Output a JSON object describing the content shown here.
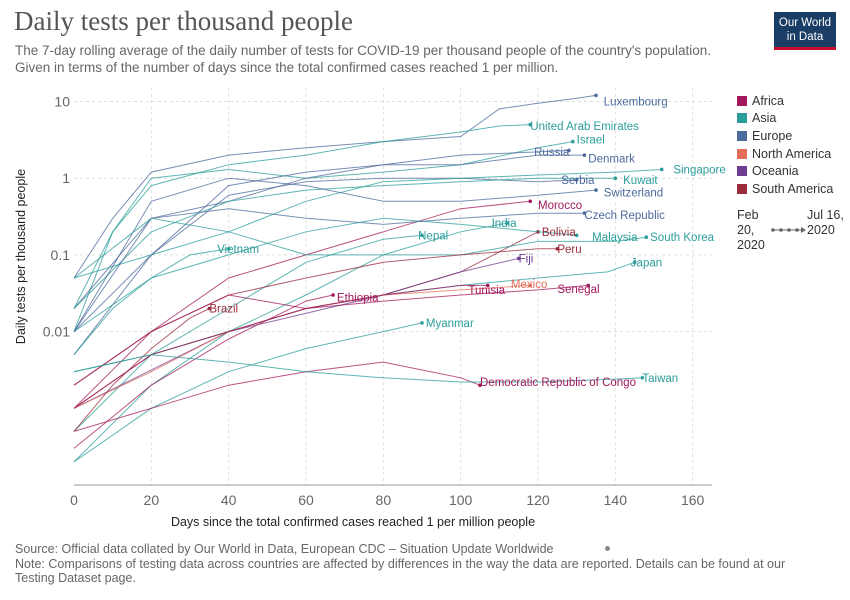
{
  "header": {
    "title": "Daily tests per thousand people",
    "subtitle": "The 7-day rolling average of the daily number of tests for COVID-19 per thousand people of the country's population. Given in terms of the number of days since the total confirmed cases reached 1 per million.",
    "logo_line1": "Our World",
    "logo_line2": "in Data"
  },
  "legend": {
    "items": [
      {
        "label": "Africa",
        "color": "#a2185b"
      },
      {
        "label": "Asia",
        "color": "#2a9d9a"
      },
      {
        "label": "Europe",
        "color": "#4c6a9c"
      },
      {
        "label": "North America",
        "color": "#e56e5a"
      },
      {
        "label": "Oceania",
        "color": "#6d3e91"
      },
      {
        "label": "South America",
        "color": "#9a2b3c"
      }
    ]
  },
  "timeline": {
    "start": "Feb 20, 2020",
    "end": "Jul 16, 2020"
  },
  "footer": {
    "source": "Source: Official data collated by Our World in Data, European CDC – Situation Update Worldwide",
    "note": "Note: Comparisons of testing data across countries are affected by differences in the way the data are reported. Details can be found at our Testing Dataset page."
  },
  "chart_data": {
    "type": "line",
    "title": "Daily tests per thousand people",
    "xlabel": "Days since the total confirmed cases reached 1 per million people",
    "ylabel": "Daily tests per thousand people",
    "xlim": [
      0,
      165
    ],
    "ylim": [
      0.0001,
      15
    ],
    "y_scale": "log",
    "x_ticks": [
      0,
      20,
      40,
      60,
      80,
      100,
      120,
      140,
      160
    ],
    "y_ticks": [
      {
        "value": 10,
        "label": "10"
      },
      {
        "value": 1,
        "label": "1"
      },
      {
        "value": 0.1,
        "label": "0.1"
      },
      {
        "value": 0.01,
        "label": "0.01"
      }
    ],
    "grid": true,
    "legend_position": "right",
    "series": [
      {
        "name": "Luxembourg",
        "region": "Europe",
        "x": [
          0,
          10,
          20,
          40,
          60,
          80,
          100,
          110,
          120,
          130,
          135
        ],
        "y": [
          0.05,
          0.3,
          1.2,
          2.0,
          2.5,
          3.0,
          3.5,
          8.0,
          9.5,
          11.0,
          12.0
        ],
        "label_x": 137,
        "label_y": 10.0
      },
      {
        "name": "United Arab Emirates",
        "region": "Asia",
        "x": [
          0,
          10,
          20,
          40,
          60,
          80,
          100,
          110,
          118
        ],
        "y": [
          0.02,
          0.2,
          0.8,
          1.5,
          2.0,
          3.0,
          4.0,
          4.8,
          5.0
        ],
        "label_x": 118,
        "label_y": 4.8
      },
      {
        "name": "Israel",
        "region": "Asia",
        "x": [
          0,
          10,
          20,
          40,
          60,
          80,
          100,
          120,
          129
        ],
        "y": [
          0.01,
          0.2,
          1.0,
          1.3,
          1.0,
          1.2,
          1.5,
          2.5,
          3.0
        ],
        "label_x": 130,
        "label_y": 3.2
      },
      {
        "name": "Russia",
        "region": "Europe",
        "x": [
          0,
          20,
          40,
          60,
          80,
          100,
          120,
          128
        ],
        "y": [
          0.005,
          0.1,
          0.8,
          1.2,
          1.5,
          2.0,
          2.2,
          2.3
        ],
        "label_x": 119,
        "label_y": 2.2
      },
      {
        "name": "Denmark",
        "region": "Europe",
        "x": [
          0,
          20,
          40,
          60,
          80,
          100,
          120,
          132
        ],
        "y": [
          0.02,
          0.3,
          0.5,
          1.0,
          1.5,
          1.5,
          2.0,
          2.0
        ],
        "label_x": 133,
        "label_y": 1.8
      },
      {
        "name": "Serbia",
        "region": "Europe",
        "x": [
          0,
          20,
          40,
          60,
          80,
          100,
          120,
          130
        ],
        "y": [
          0.01,
          0.1,
          0.6,
          0.9,
          1.0,
          1.0,
          0.9,
          0.95
        ],
        "label_x": 126,
        "label_y": 0.95
      },
      {
        "name": "Kuwait",
        "region": "Asia",
        "x": [
          0,
          20,
          40,
          60,
          80,
          100,
          120,
          140
        ],
        "y": [
          0.02,
          0.2,
          0.5,
          0.7,
          0.8,
          0.9,
          1.0,
          1.0
        ],
        "label_x": 142,
        "label_y": 0.95
      },
      {
        "name": "Singapore",
        "region": "Asia",
        "x": [
          0,
          20,
          40,
          60,
          80,
          100,
          120,
          140,
          152
        ],
        "y": [
          0.05,
          0.1,
          0.2,
          0.5,
          0.9,
          1.0,
          1.1,
          1.2,
          1.3
        ],
        "label_x": 155,
        "label_y": 1.3
      },
      {
        "name": "Switzerland",
        "region": "Europe",
        "x": [
          0,
          20,
          40,
          60,
          80,
          100,
          120,
          135
        ],
        "y": [
          0.01,
          0.5,
          1.0,
          0.8,
          0.5,
          0.5,
          0.6,
          0.7
        ],
        "label_x": 137,
        "label_y": 0.65
      },
      {
        "name": "Morocco",
        "region": "Africa",
        "x": [
          0,
          20,
          40,
          60,
          80,
          100,
          118
        ],
        "y": [
          0.001,
          0.01,
          0.05,
          0.1,
          0.2,
          0.4,
          0.5
        ],
        "label_x": 120,
        "label_y": 0.45
      },
      {
        "name": "Czech Republic",
        "region": "Europe",
        "x": [
          0,
          20,
          40,
          60,
          80,
          100,
          120,
          132
        ],
        "y": [
          0.01,
          0.3,
          0.4,
          0.3,
          0.25,
          0.3,
          0.35,
          0.35
        ],
        "label_x": 132,
        "label_y": 0.33
      },
      {
        "name": "India",
        "region": "Asia",
        "x": [
          0,
          20,
          40,
          60,
          80,
          100,
          112
        ],
        "y": [
          0.0002,
          0.002,
          0.01,
          0.03,
          0.1,
          0.2,
          0.26
        ],
        "label_x": 108,
        "label_y": 0.26
      },
      {
        "name": "Bolivia",
        "region": "South America",
        "x": [
          0,
          20,
          40,
          60,
          80,
          100,
          120
        ],
        "y": [
          0.001,
          0.005,
          0.01,
          0.02,
          0.03,
          0.06,
          0.2
        ],
        "label_x": 121,
        "label_y": 0.2
      },
      {
        "name": "Nepal",
        "region": "Asia",
        "x": [
          0,
          20,
          40,
          60,
          80,
          90
        ],
        "y": [
          0.0005,
          0.005,
          0.02,
          0.08,
          0.16,
          0.18
        ],
        "label_x": 89,
        "label_y": 0.18
      },
      {
        "name": "Malaysia",
        "region": "Asia",
        "x": [
          0,
          20,
          40,
          60,
          80,
          100,
          120,
          130
        ],
        "y": [
          0.01,
          0.05,
          0.1,
          0.2,
          0.3,
          0.25,
          0.2,
          0.18
        ],
        "label_x": 134,
        "label_y": 0.17
      },
      {
        "name": "South Korea",
        "region": "Asia",
        "x": [
          0,
          20,
          40,
          60,
          80,
          100,
          120,
          140,
          148
        ],
        "y": [
          0.05,
          0.3,
          0.2,
          0.1,
          0.1,
          0.1,
          0.15,
          0.15,
          0.17
        ],
        "label_x": 149,
        "label_y": 0.17
      },
      {
        "name": "Vietnam",
        "region": "Asia",
        "x": [
          0,
          10,
          20,
          30,
          40
        ],
        "y": [
          0.005,
          0.02,
          0.05,
          0.1,
          0.12
        ],
        "label_x": 37,
        "label_y": 0.12
      },
      {
        "name": "Peru",
        "region": "South America",
        "x": [
          0,
          20,
          40,
          60,
          80,
          100,
          120,
          125
        ],
        "y": [
          0.002,
          0.01,
          0.03,
          0.05,
          0.08,
          0.1,
          0.12,
          0.12
        ],
        "label_x": 125,
        "label_y": 0.12
      },
      {
        "name": "Fiji",
        "region": "Oceania",
        "x": [
          0,
          40,
          80,
          100,
          115
        ],
        "y": [
          0.001,
          0.01,
          0.03,
          0.06,
          0.09
        ],
        "label_x": 115,
        "label_y": 0.09
      },
      {
        "name": "Japan",
        "region": "Asia",
        "x": [
          0,
          20,
          40,
          60,
          80,
          100,
          120,
          138,
          145
        ],
        "y": [
          0.003,
          0.005,
          0.01,
          0.02,
          0.03,
          0.04,
          0.05,
          0.06,
          0.08
        ],
        "label_x": 144,
        "label_y": 0.08
      },
      {
        "name": "Mexico",
        "region": "North America",
        "x": [
          0,
          20,
          40,
          60,
          80,
          100,
          118
        ],
        "y": [
          0.001,
          0.003,
          0.01,
          0.02,
          0.03,
          0.035,
          0.04
        ],
        "label_x": 113,
        "label_y": 0.042
      },
      {
        "name": "Tunisia",
        "region": "Africa",
        "x": [
          0,
          20,
          40,
          60,
          80,
          100,
          107
        ],
        "y": [
          0.002,
          0.01,
          0.03,
          0.02,
          0.03,
          0.04,
          0.04
        ],
        "label_x": 102,
        "label_y": 0.035
      },
      {
        "name": "Senegal",
        "region": "Africa",
        "x": [
          0,
          20,
          40,
          60,
          80,
          100,
          120,
          133
        ],
        "y": [
          0.001,
          0.005,
          0.01,
          0.02,
          0.025,
          0.03,
          0.035,
          0.04
        ],
        "label_x": 125,
        "label_y": 0.036
      },
      {
        "name": "Ethiopia",
        "region": "Africa",
        "x": [
          0,
          20,
          40,
          60,
          67
        ],
        "y": [
          0.0003,
          0.002,
          0.008,
          0.025,
          0.03
        ],
        "label_x": 68,
        "label_y": 0.028
      },
      {
        "name": "Brazil",
        "region": "South America",
        "x": [
          0,
          10,
          20,
          30,
          35
        ],
        "y": [
          0.0005,
          0.002,
          0.006,
          0.015,
          0.02
        ],
        "label_x": 35,
        "label_y": 0.02
      },
      {
        "name": "Myanmar",
        "region": "Asia",
        "x": [
          0,
          20,
          40,
          60,
          80,
          90
        ],
        "y": [
          0.0002,
          0.001,
          0.003,
          0.006,
          0.01,
          0.013
        ],
        "label_x": 91,
        "label_y": 0.013
      },
      {
        "name": "Democratic Republic of Congo",
        "region": "Africa",
        "x": [
          0,
          20,
          40,
          60,
          80,
          100,
          105
        ],
        "y": [
          0.0005,
          0.001,
          0.002,
          0.003,
          0.004,
          0.0025,
          0.002
        ],
        "label_x": 105,
        "label_y": 0.0022
      },
      {
        "name": "Taiwan",
        "region": "Asia",
        "x": [
          0,
          20,
          40,
          60,
          80,
          100,
          120,
          140,
          147
        ],
        "y": [
          0.003,
          0.005,
          0.004,
          0.003,
          0.0025,
          0.0022,
          0.0022,
          0.0024,
          0.0025
        ],
        "label_x": 147,
        "label_y": 0.0025
      }
    ]
  }
}
